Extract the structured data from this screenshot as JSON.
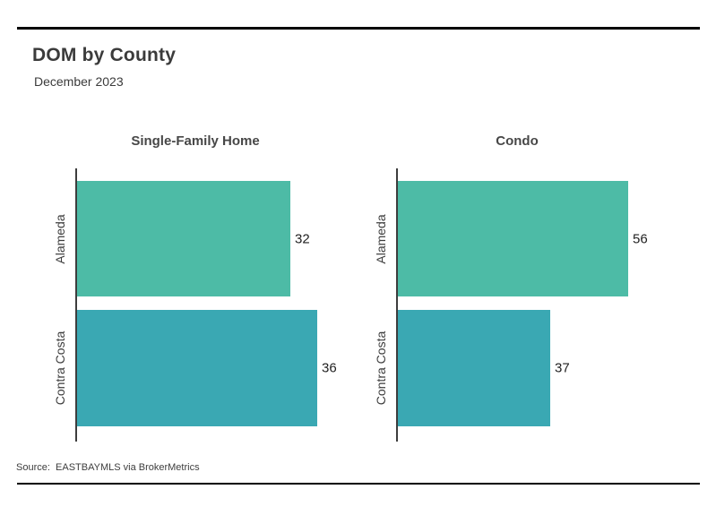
{
  "header": {
    "title": "DOM by County",
    "subtitle": "December 2023"
  },
  "footer": {
    "source": "Source:  EASTBAYMLS via BrokerMetrics"
  },
  "chart_data": {
    "type": "bar",
    "orientation": "horizontal",
    "title": "DOM by County",
    "subtitle": "December 2023",
    "categories": [
      "Alameda",
      "Contra Costa"
    ],
    "panels": [
      {
        "label": "Single-Family Home",
        "values": [
          32,
          36
        ]
      },
      {
        "label": "Condo",
        "values": [
          56,
          37
        ]
      }
    ],
    "bar_colors": [
      "#4dbba6",
      "#3aa8b3"
    ],
    "axis_color": "#3d3d3d",
    "value_label_color": "#1f1f1f",
    "grid": false,
    "legend": "none",
    "value_labels": "outside-end",
    "source": "Source:  EASTBAYMLS via BrokerMetrics"
  }
}
